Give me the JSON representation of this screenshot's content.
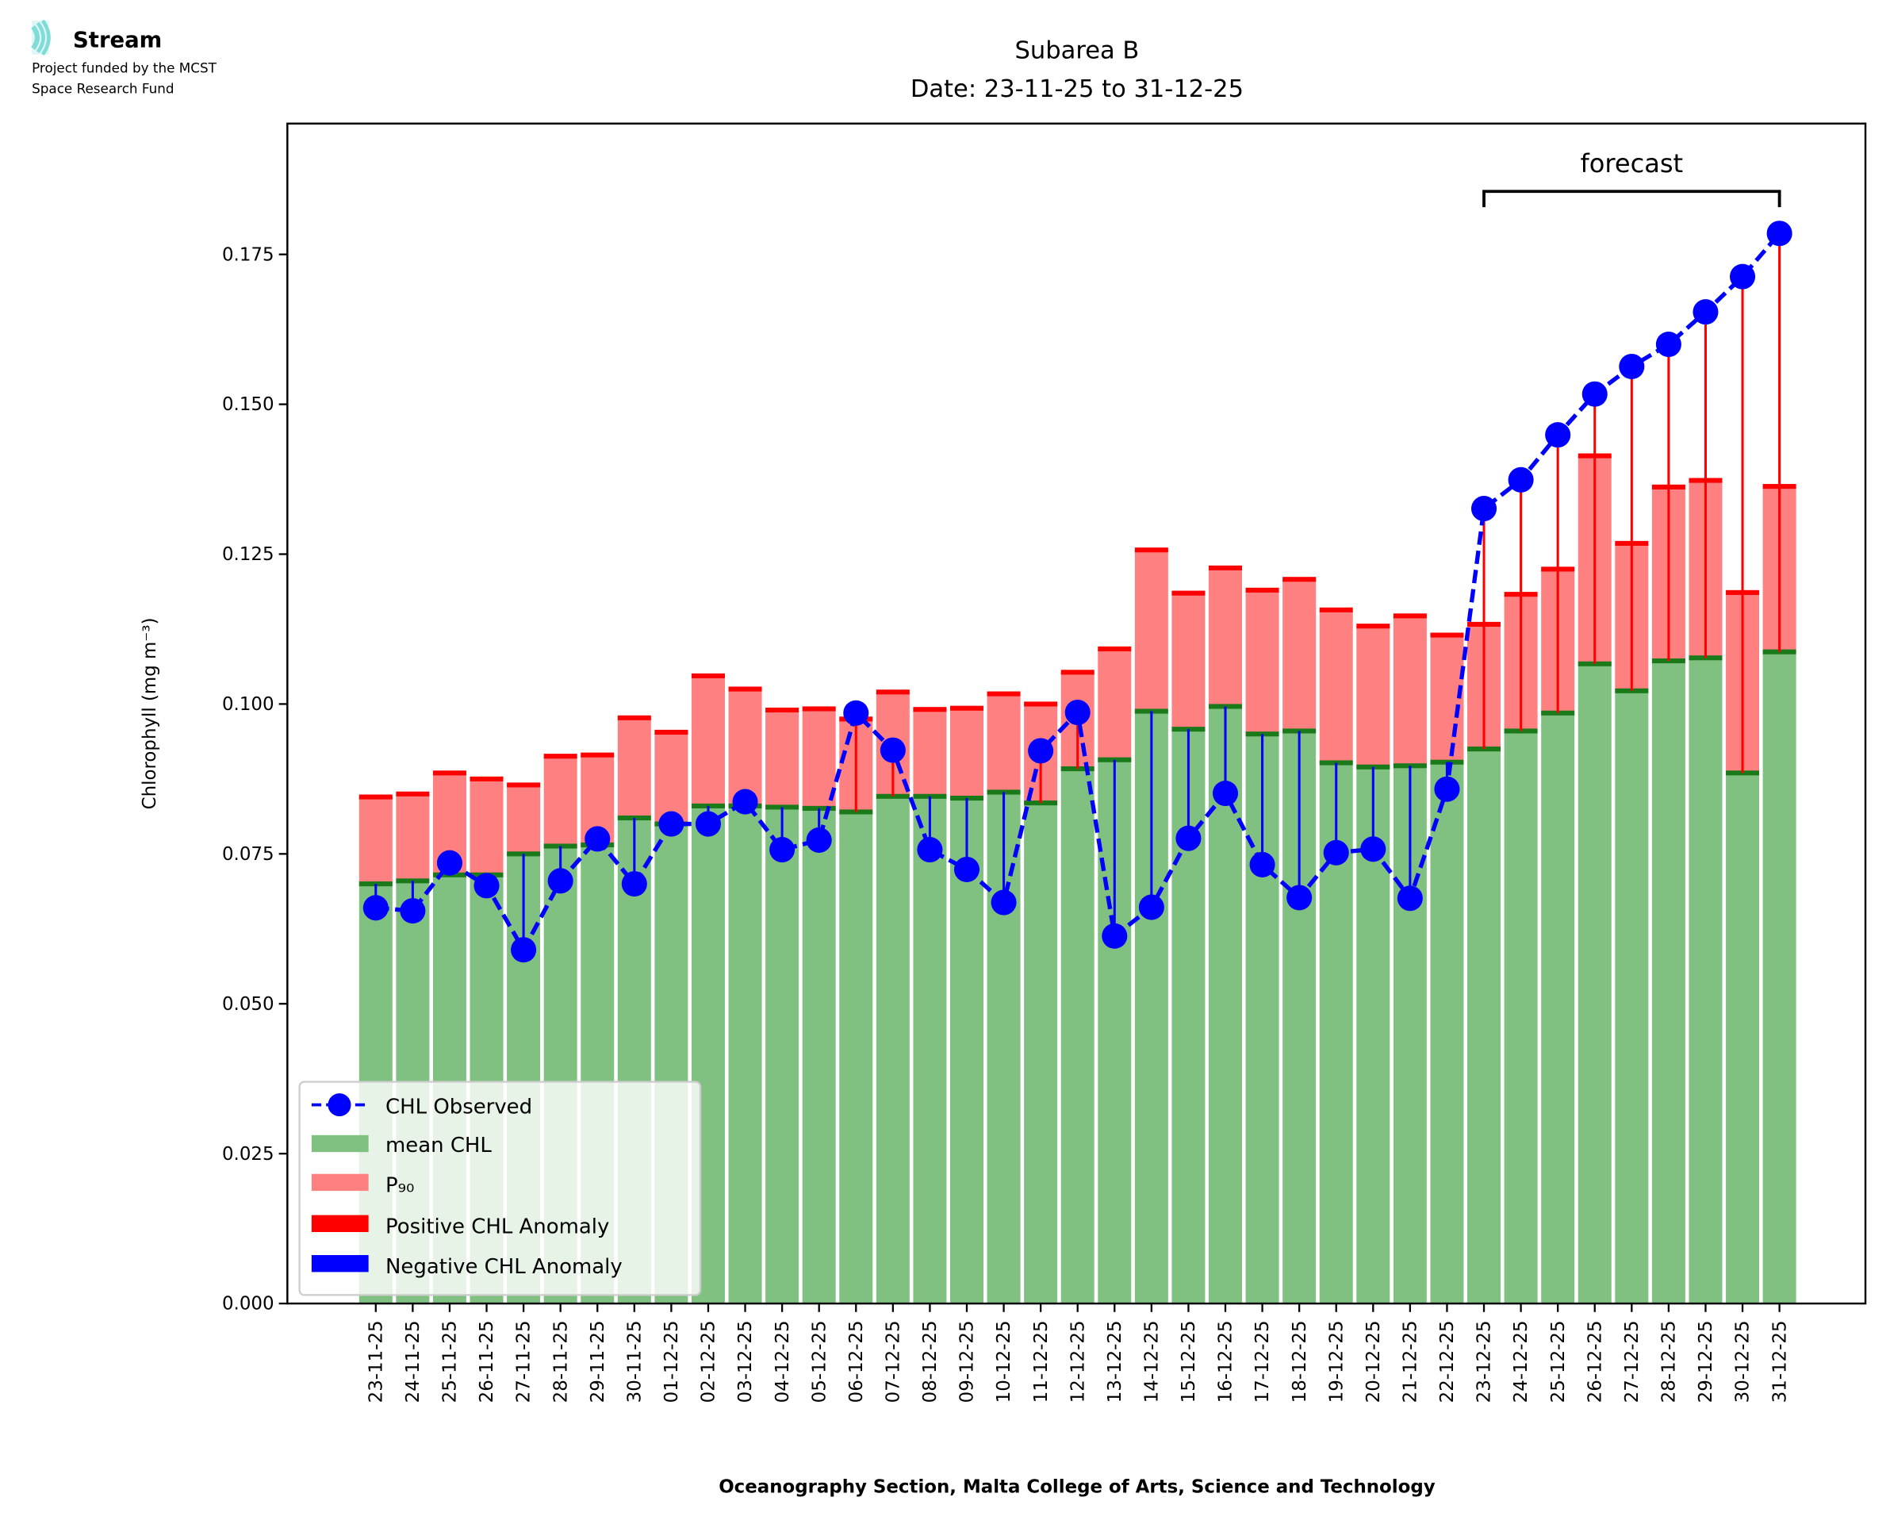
{
  "logo": {
    "name": "Stream",
    "line1": "Project funded by the MCST",
    "line2": "Space Research Fund",
    "color": "#7fdcd9"
  },
  "chart_data": {
    "type": "bar",
    "title": "Subarea B",
    "subtitle": "Date: 23-11-25 to 31-12-25",
    "xlabel": "Oceanography Section, Malta College of Arts, Science and Technology",
    "ylabel": "Chlorophyll (mg m⁻³)",
    "ylim": [
      0,
      0.196
    ],
    "yticks": [
      "0.000",
      "0.025",
      "0.050",
      "0.075",
      "0.100",
      "0.125",
      "0.150",
      "0.175"
    ],
    "ytick_values": [
      0,
      0.025,
      0.05,
      0.075,
      0.1,
      0.125,
      0.15,
      0.175
    ],
    "annotation": "forecast",
    "forecast_range": [
      "23-12-25",
      "31-12-25"
    ],
    "legend_position": "lower-left",
    "legend": [
      "CHL Observed",
      "mean CHL",
      "P₉₀",
      "Positive CHL Anomaly",
      "Negative CHL Anomaly"
    ],
    "colors": {
      "observed": "#0000ff",
      "mean": "#80c080",
      "mean_edge": "#1a7a1a",
      "p90": "#ff8080",
      "p90_edge": "#ff0000",
      "positive": "#ff0000",
      "negative": "#0000ff"
    },
    "categories": [
      "23-11-25",
      "24-11-25",
      "25-11-25",
      "26-11-25",
      "27-11-25",
      "28-11-25",
      "29-11-25",
      "30-11-25",
      "01-12-25",
      "02-12-25",
      "03-12-25",
      "04-12-25",
      "05-12-25",
      "06-12-25",
      "07-12-25",
      "08-12-25",
      "09-12-25",
      "10-12-25",
      "11-12-25",
      "12-12-25",
      "13-12-25",
      "14-12-25",
      "15-12-25",
      "16-12-25",
      "17-12-25",
      "18-12-25",
      "19-12-25",
      "20-12-25",
      "21-12-25",
      "22-12-25",
      "23-12-25",
      "24-12-25",
      "25-12-25",
      "26-12-25",
      "27-12-25",
      "28-12-25",
      "29-12-25",
      "30-12-25",
      "31-12-25"
    ],
    "series": [
      {
        "name": "mean CHL",
        "values": [
          0.07,
          0.0705,
          0.0715,
          0.0715,
          0.075,
          0.0763,
          0.0765,
          0.081,
          0.08,
          0.083,
          0.083,
          0.0828,
          0.0826,
          0.082,
          0.0846,
          0.0846,
          0.0843,
          0.0853,
          0.0835,
          0.0892,
          0.0907,
          0.0988,
          0.0958,
          0.0996,
          0.095,
          0.0955,
          0.0902,
          0.0895,
          0.0897,
          0.0903,
          0.0925,
          0.0955,
          0.0985,
          0.1067,
          0.1022,
          0.1072,
          0.1077,
          0.0885,
          0.1087
        ]
      },
      {
        "name": "P90",
        "values": [
          0.0845,
          0.085,
          0.0885,
          0.0875,
          0.0865,
          0.0913,
          0.0915,
          0.0977,
          0.0953,
          0.1047,
          0.1025,
          0.099,
          0.0992,
          0.0975,
          0.102,
          0.0991,
          0.0993,
          0.1017,
          0.1,
          0.1053,
          0.1092,
          0.1257,
          0.1185,
          0.1227,
          0.119,
          0.1208,
          0.1157,
          0.113,
          0.1147,
          0.1115,
          0.1133,
          0.1183,
          0.1225,
          0.1414,
          0.1268,
          0.1362,
          0.1373,
          0.1186,
          0.1363
        ]
      },
      {
        "name": "CHL Observed",
        "values": [
          0.066,
          0.0655,
          0.0735,
          0.0697,
          0.059,
          0.0705,
          0.0775,
          0.07,
          0.08,
          0.08,
          0.0837,
          0.0757,
          0.0773,
          0.0985,
          0.0923,
          0.0757,
          0.0724,
          0.0669,
          0.0922,
          0.0986,
          0.0613,
          0.0661,
          0.0776,
          0.0851,
          0.0732,
          0.0677,
          0.0752,
          0.0758,
          0.0676,
          0.0858,
          0.1326,
          0.1374,
          0.1449,
          0.1517,
          0.1563,
          0.16,
          0.1654,
          0.1713,
          0.1785
        ]
      }
    ]
  }
}
